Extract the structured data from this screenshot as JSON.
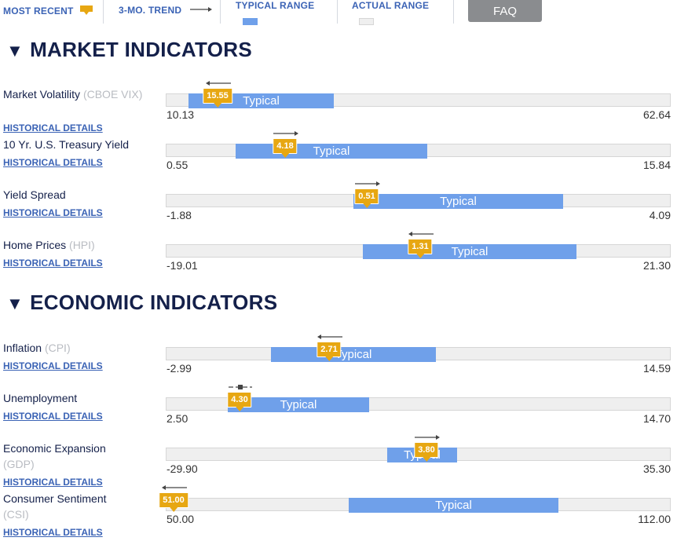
{
  "legend": {
    "most_recent": "MOST RECENT",
    "trend": "3-MO. TREND",
    "typical": "TYPICAL RANGE",
    "actual": "ACTUAL RANGE",
    "faq": "FAQ",
    "colors": {
      "marker": "#e7a712",
      "typical": "#6fa0ea",
      "actual": "#efefef"
    }
  },
  "market": {
    "title": "MARKET INDICATORS",
    "rows": [
      {
        "name": "Market Volatility",
        "abbr": "(CBOE VIX)",
        "link": "HISTORICAL DETAILS",
        "typical": "Typical",
        "min": "10.13",
        "max": "62.64",
        "value": "15.55",
        "trend": "left"
      },
      {
        "name": "10 Yr. U.S. Treasury Yield",
        "abbr": "",
        "link": "HISTORICAL DETAILS",
        "typical": "Typical",
        "min": "0.55",
        "max": "15.84",
        "value": "4.18",
        "trend": "right"
      },
      {
        "name": "Yield Spread",
        "abbr": "",
        "link": "HISTORICAL DETAILS",
        "typical": "Typical",
        "min": "-1.88",
        "max": "4.09",
        "value": "0.51",
        "trend": "right"
      },
      {
        "name": "Home Prices",
        "abbr": "(HPI)",
        "link": "HISTORICAL DETAILS",
        "typical": "Typical",
        "min": "-19.01",
        "max": "21.30",
        "value": "1.31",
        "trend": "left"
      }
    ]
  },
  "economic": {
    "title": "ECONOMIC INDICATORS",
    "rows": [
      {
        "name": "Inflation",
        "abbr": "(CPI)",
        "link": "HISTORICAL DETAILS",
        "typical": "Typical",
        "min": "-2.99",
        "max": "14.59",
        "value": "2.71",
        "trend": "left"
      },
      {
        "name": "Unemployment",
        "abbr": "",
        "link": "HISTORICAL DETAILS",
        "typical": "Typical",
        "min": "2.50",
        "max": "14.70",
        "value": "4.30",
        "trend": "flat"
      },
      {
        "name": "Economic Expansion",
        "abbr": "(GDP)",
        "link": "HISTORICAL DETAILS",
        "typical": "Typical",
        "min": "-29.90",
        "max": "35.30",
        "value": "3.80",
        "trend": "right"
      },
      {
        "name": "Consumer Sentiment",
        "abbr": "(CSI)",
        "link": "HISTORICAL DETAILS",
        "typical": "Typical",
        "min": "50.00",
        "max": "112.00",
        "value": "51.00",
        "trend": "left"
      }
    ]
  }
}
